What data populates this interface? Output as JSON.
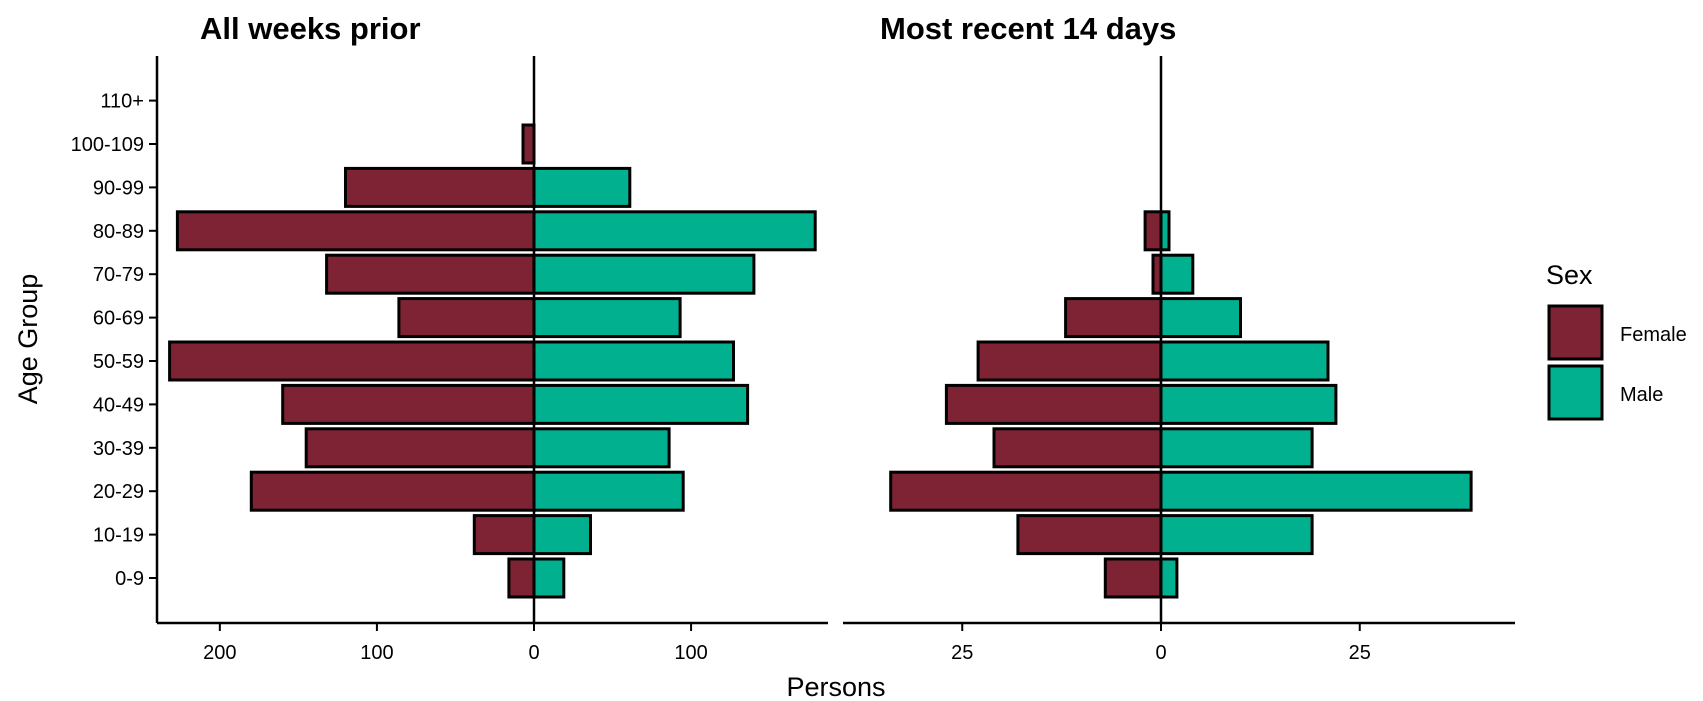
{
  "chart_data": {
    "type": "bar",
    "orientation": "horizontal",
    "categories": [
      "0-9",
      "10-19",
      "20-29",
      "30-39",
      "40-49",
      "50-59",
      "60-69",
      "70-79",
      "80-89",
      "90-99",
      "100-109",
      "110+"
    ],
    "ylabel": "Age Group",
    "xlabel": "Persons",
    "legend": {
      "title": "Sex",
      "position": "right",
      "entries": [
        {
          "name": "Female",
          "color": "#7e2333"
        },
        {
          "name": "Male",
          "color": "#00b08f"
        }
      ]
    },
    "panels": [
      {
        "title": "All weeks prior",
        "xlim": [
          -240,
          190
        ],
        "xticks": [
          -200,
          -100,
          0,
          100
        ],
        "xtick_labels": [
          "200",
          "100",
          "0",
          "100"
        ],
        "series": [
          {
            "name": "Female",
            "values": [
              16,
              38,
              180,
              145,
              160,
              232,
              86,
              132,
              227,
              120,
              7,
              0
            ]
          },
          {
            "name": "Male",
            "values": [
              19,
              36,
              95,
              86,
              136,
              127,
              93,
              140,
              179,
              61,
              0,
              0
            ]
          }
        ]
      },
      {
        "title": "Most recent 14 days",
        "xlim": [
          -40,
          49
        ],
        "xticks": [
          -25,
          0,
          25
        ],
        "xtick_labels": [
          "25",
          "0",
          "25"
        ],
        "series": [
          {
            "name": "Female",
            "values": [
              7,
              18,
              34,
              21,
              27,
              23,
              12,
              1,
              2,
              0,
              0,
              0
            ]
          },
          {
            "name": "Male",
            "values": [
              2,
              19,
              39,
              19,
              22,
              21,
              10,
              4,
              1,
              0,
              0,
              0
            ]
          }
        ]
      }
    ]
  }
}
